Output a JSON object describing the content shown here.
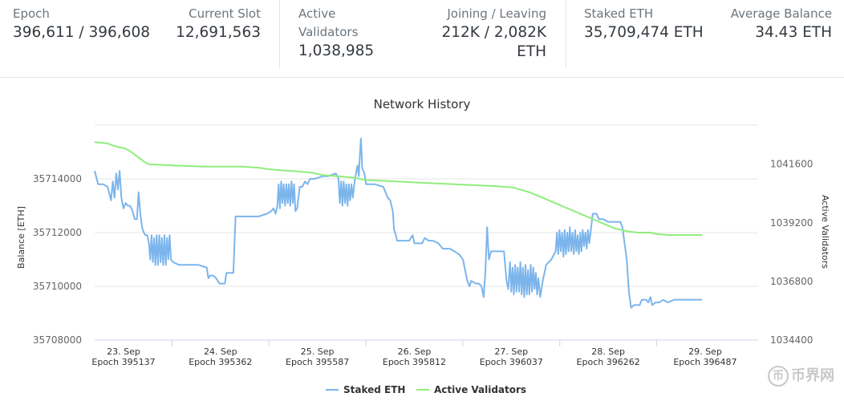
{
  "stats": {
    "epoch": {
      "label": "Epoch",
      "value": "396,611 / 396,608"
    },
    "current_slot": {
      "label": "Current Slot",
      "value": "12,691,563"
    },
    "active_validators": {
      "label_line1": "Active",
      "label_line2": "Validators",
      "value": "1,038,985"
    },
    "joining_leaving": {
      "label": "Joining / Leaving",
      "value_line1": "212K / 2,082K",
      "value_line2": "ETH"
    },
    "staked_eth": {
      "label": "Staked ETH",
      "value": "35,709,474 ETH"
    },
    "average_balance": {
      "label": "Average Balance",
      "value": "34.43 ETH"
    }
  },
  "colors": {
    "staked": "#7cb5ec",
    "validators": "#90ed7d",
    "grid": "#e6e6e6"
  },
  "watermark": {
    "glyph": "币",
    "text": "币界网"
  },
  "chart_data": {
    "type": "line",
    "title": "Network History",
    "ylabel_left": "Balance [ETH]",
    "ylabel_right": "Active Validators",
    "yaxis_left": {
      "min": 35708000,
      "max": 35716000,
      "ticks": [
        "35708000",
        "35710000",
        "35712000",
        "35714000"
      ]
    },
    "yaxis_right": {
      "min": 1034400,
      "max": 1043200,
      "ticks": [
        "1034400",
        "1036800",
        "1039200",
        "1041600"
      ]
    },
    "x_range": [
      395070,
      396610
    ],
    "x_ticks": [
      {
        "x": 395137,
        "day": "23. Sep",
        "epoch": "Epoch 395137"
      },
      {
        "x": 395362,
        "day": "24. Sep",
        "epoch": "Epoch 395362"
      },
      {
        "x": 395587,
        "day": "25. Sep",
        "epoch": "Epoch 395587"
      },
      {
        "x": 395812,
        "day": "26. Sep",
        "epoch": "Epoch 395812"
      },
      {
        "x": 396037,
        "day": "27. Sep",
        "epoch": "Epoch 396037"
      },
      {
        "x": 396262,
        "day": "28. Sep",
        "epoch": "Epoch 396262"
      },
      {
        "x": 396487,
        "day": "29. Sep",
        "epoch": "Epoch 396487"
      }
    ],
    "legend_position": "bottom-center",
    "series": [
      {
        "name": "Staked ETH",
        "axis": "left",
        "color": "#7cb5ec",
        "points": [
          [
            395070,
            35714300
          ],
          [
            395078,
            35713800
          ],
          [
            395090,
            35713800
          ],
          [
            395100,
            35713700
          ],
          [
            395108,
            35713200
          ],
          [
            395112,
            35713900
          ],
          [
            395116,
            35713300
          ],
          [
            395120,
            35714200
          ],
          [
            395124,
            35713600
          ],
          [
            395128,
            35714300
          ],
          [
            395132,
            35713300
          ],
          [
            395137,
            35712900
          ],
          [
            395142,
            35713100
          ],
          [
            395147,
            35713000
          ],
          [
            395152,
            35713000
          ],
          [
            395158,
            35712800
          ],
          [
            395163,
            35712500
          ],
          [
            395168,
            35712500
          ],
          [
            395172,
            35713500
          ],
          [
            395176,
            35712700
          ],
          [
            395180,
            35712200
          ],
          [
            395184,
            35712000
          ],
          [
            395188,
            35711900
          ],
          [
            395192,
            35711900
          ],
          [
            395196,
            35711600
          ],
          [
            395199,
            35711000
          ],
          [
            395202,
            35711900
          ],
          [
            395205,
            35710900
          ],
          [
            395208,
            35711800
          ],
          [
            395211,
            35710800
          ],
          [
            395214,
            35711900
          ],
          [
            395217,
            35710800
          ],
          [
            395220,
            35711900
          ],
          [
            395223,
            35710900
          ],
          [
            395226,
            35711800
          ],
          [
            395229,
            35710800
          ],
          [
            395232,
            35711900
          ],
          [
            395235,
            35710800
          ],
          [
            395238,
            35711800
          ],
          [
            395241,
            35711000
          ],
          [
            395244,
            35711900
          ],
          [
            395247,
            35711000
          ],
          [
            395252,
            35710900
          ],
          [
            395265,
            35710800
          ],
          [
            395285,
            35710800
          ],
          [
            395310,
            35710800
          ],
          [
            395330,
            35710700
          ],
          [
            395334,
            35710300
          ],
          [
            395338,
            35710400
          ],
          [
            395345,
            35710400
          ],
          [
            395352,
            35710300
          ],
          [
            395360,
            35710100
          ],
          [
            395372,
            35710100
          ],
          [
            395376,
            35710500
          ],
          [
            395392,
            35710500
          ],
          [
            395397,
            35712600
          ],
          [
            395415,
            35712600
          ],
          [
            395450,
            35712600
          ],
          [
            395470,
            35712700
          ],
          [
            395480,
            35712800
          ],
          [
            395485,
            35712900
          ],
          [
            395490,
            35712700
          ],
          [
            395494,
            35713000
          ],
          [
            395497,
            35713800
          ],
          [
            395500,
            35712900
          ],
          [
            395503,
            35713900
          ],
          [
            395506,
            35713100
          ],
          [
            395509,
            35713800
          ],
          [
            395512,
            35713000
          ],
          [
            395515,
            35713800
          ],
          [
            395518,
            35713100
          ],
          [
            395521,
            35713800
          ],
          [
            395524,
            35713000
          ],
          [
            395527,
            35713900
          ],
          [
            395530,
            35713100
          ],
          [
            395533,
            35713800
          ],
          [
            395536,
            35712800
          ],
          [
            395540,
            35712900
          ],
          [
            395546,
            35713700
          ],
          [
            395552,
            35713700
          ],
          [
            395558,
            35713900
          ],
          [
            395564,
            35713800
          ],
          [
            395570,
            35714000
          ],
          [
            395580,
            35714000
          ],
          [
            395600,
            35714100
          ],
          [
            395612,
            35714100
          ],
          [
            395630,
            35714200
          ],
          [
            395636,
            35714000
          ],
          [
            395639,
            35713100
          ],
          [
            395642,
            35713900
          ],
          [
            395645,
            35713000
          ],
          [
            395648,
            35713900
          ],
          [
            395651,
            35713100
          ],
          [
            395654,
            35713800
          ],
          [
            395657,
            35713000
          ],
          [
            395660,
            35713800
          ],
          [
            395663,
            35713200
          ],
          [
            395666,
            35713800
          ],
          [
            395669,
            35713300
          ],
          [
            395674,
            35714000
          ],
          [
            395680,
            35714500
          ],
          [
            395683,
            35714100
          ],
          [
            395686,
            35715000
          ],
          [
            395688,
            35715500
          ],
          [
            395691,
            35714400
          ],
          [
            395696,
            35714200
          ],
          [
            395700,
            35713800
          ],
          [
            395720,
            35713800
          ],
          [
            395740,
            35713700
          ],
          [
            395750,
            35713300
          ],
          [
            395756,
            35713200
          ],
          [
            395762,
            35712800
          ],
          [
            395765,
            35712100
          ],
          [
            395769,
            35711900
          ],
          [
            395772,
            35711700
          ],
          [
            395785,
            35711700
          ],
          [
            395800,
            35711700
          ],
          [
            395808,
            35711900
          ],
          [
            395812,
            35711600
          ],
          [
            395830,
            35711600
          ],
          [
            395836,
            35711800
          ],
          [
            395845,
            35711700
          ],
          [
            395855,
            35711700
          ],
          [
            395868,
            35711600
          ],
          [
            395878,
            35711400
          ],
          [
            395895,
            35711400
          ],
          [
            395905,
            35711300
          ],
          [
            395915,
            35711200
          ],
          [
            395925,
            35711000
          ],
          [
            395931,
            35710500
          ],
          [
            395935,
            35710200
          ],
          [
            395940,
            35710000
          ],
          [
            395944,
            35710200
          ],
          [
            395955,
            35710100
          ],
          [
            395962,
            35710100
          ],
          [
            395968,
            35710000
          ],
          [
            395973,
            35709600
          ],
          [
            395977,
            35710600
          ],
          [
            395981,
            35712200
          ],
          [
            395985,
            35711000
          ],
          [
            395990,
            35711300
          ],
          [
            396010,
            35711300
          ],
          [
            396020,
            35711300
          ],
          [
            396026,
            35710200
          ],
          [
            396030,
            35709900
          ],
          [
            396034,
            35710900
          ],
          [
            396037,
            35709800
          ],
          [
            396040,
            35710700
          ],
          [
            396043,
            35709700
          ],
          [
            396046,
            35710800
          ],
          [
            396049,
            35709800
          ],
          [
            396052,
            35710700
          ],
          [
            396055,
            35709800
          ],
          [
            396058,
            35710900
          ],
          [
            396061,
            35709700
          ],
          [
            396064,
            35710700
          ],
          [
            396067,
            35709600
          ],
          [
            396070,
            35710800
          ],
          [
            396073,
            35709700
          ],
          [
            396076,
            35710600
          ],
          [
            396079,
            35709700
          ],
          [
            396082,
            35710800
          ],
          [
            396085,
            35709800
          ],
          [
            396088,
            35710700
          ],
          [
            396091,
            35709900
          ],
          [
            396094,
            35710500
          ],
          [
            396097,
            35709700
          ],
          [
            396100,
            35710300
          ],
          [
            396104,
            35709600
          ],
          [
            396110,
            35710200
          ],
          [
            396118,
            35710800
          ],
          [
            396130,
            35711000
          ],
          [
            396140,
            35711300
          ],
          [
            396143,
            35712000
          ],
          [
            396146,
            35711200
          ],
          [
            396149,
            35712100
          ],
          [
            396152,
            35711300
          ],
          [
            396155,
            35712000
          ],
          [
            396158,
            35711100
          ],
          [
            396161,
            35712100
          ],
          [
            396164,
            35711200
          ],
          [
            396167,
            35712000
          ],
          [
            396170,
            35711300
          ],
          [
            396173,
            35712200
          ],
          [
            396176,
            35711300
          ],
          [
            396179,
            35712000
          ],
          [
            396182,
            35711200
          ],
          [
            396185,
            35712100
          ],
          [
            396188,
            35711300
          ],
          [
            396191,
            35711900
          ],
          [
            396194,
            35711200
          ],
          [
            396197,
            35712000
          ],
          [
            396200,
            35711300
          ],
          [
            396203,
            35712100
          ],
          [
            396206,
            35711500
          ],
          [
            396209,
            35712000
          ],
          [
            396212,
            35711400
          ],
          [
            396215,
            35712100
          ],
          [
            396218,
            35711600
          ],
          [
            396221,
            35712000
          ],
          [
            396226,
            35712700
          ],
          [
            396235,
            35712700
          ],
          [
            396240,
            35712500
          ],
          [
            396250,
            35712500
          ],
          [
            396262,
            35712400
          ],
          [
            396278,
            35712400
          ],
          [
            396290,
            35712400
          ],
          [
            396295,
            35712200
          ],
          [
            396305,
            35711000
          ],
          [
            396310,
            35709800
          ],
          [
            396315,
            35709200
          ],
          [
            396322,
            35709300
          ],
          [
            396335,
            35709300
          ],
          [
            396340,
            35709500
          ],
          [
            396350,
            35709500
          ],
          [
            396355,
            35709400
          ],
          [
            396360,
            35709600
          ],
          [
            396364,
            35709300
          ],
          [
            396372,
            35709400
          ],
          [
            396380,
            35709400
          ],
          [
            396390,
            35709500
          ],
          [
            396400,
            35709400
          ],
          [
            396415,
            35709500
          ],
          [
            396430,
            35709500
          ],
          [
            396450,
            35709500
          ],
          [
            396470,
            35709500
          ],
          [
            396480,
            35709500
          ]
        ]
      },
      {
        "name": "Active Validators",
        "axis": "right",
        "color": "#90ed7d",
        "points": [
          [
            395070,
            1042500
          ],
          [
            395100,
            1042450
          ],
          [
            395115,
            1042350
          ],
          [
            395125,
            1042300
          ],
          [
            395140,
            1042250
          ],
          [
            395155,
            1042100
          ],
          [
            395170,
            1041900
          ],
          [
            395185,
            1041700
          ],
          [
            395195,
            1041600
          ],
          [
            395250,
            1041550
          ],
          [
            395330,
            1041500
          ],
          [
            395415,
            1041500
          ],
          [
            395452,
            1041450
          ],
          [
            395470,
            1041400
          ],
          [
            395500,
            1041350
          ],
          [
            395545,
            1041300
          ],
          [
            395575,
            1041250
          ],
          [
            395600,
            1041150
          ],
          [
            395640,
            1041100
          ],
          [
            395670,
            1041050
          ],
          [
            395700,
            1040950
          ],
          [
            395760,
            1040900
          ],
          [
            395820,
            1040850
          ],
          [
            395880,
            1040800
          ],
          [
            395940,
            1040750
          ],
          [
            396000,
            1040700
          ],
          [
            396040,
            1040650
          ],
          [
            396080,
            1040450
          ],
          [
            396120,
            1040150
          ],
          [
            396160,
            1039850
          ],
          [
            396200,
            1039550
          ],
          [
            396240,
            1039250
          ],
          [
            396280,
            1038950
          ],
          [
            396308,
            1038850
          ],
          [
            396330,
            1038800
          ],
          [
            396360,
            1038800
          ],
          [
            396372,
            1038750
          ],
          [
            396400,
            1038700
          ],
          [
            396450,
            1038700
          ],
          [
            396480,
            1038700
          ]
        ]
      }
    ]
  }
}
